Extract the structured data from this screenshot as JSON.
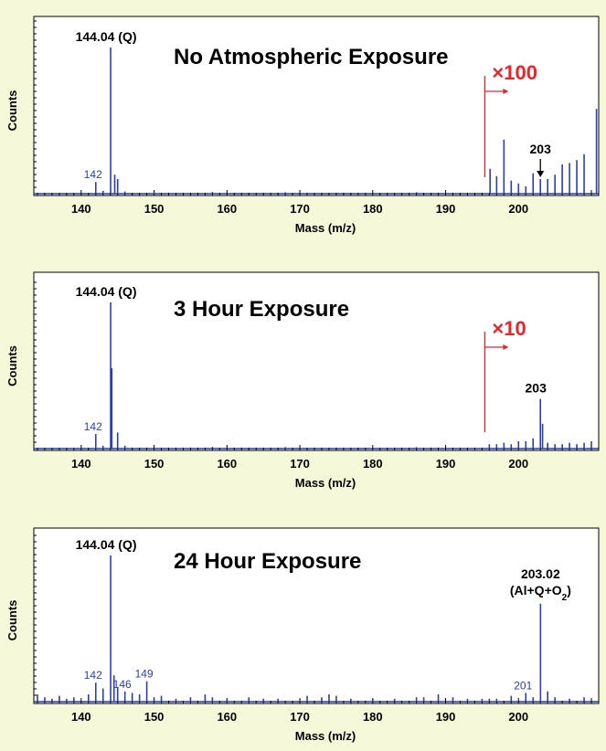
{
  "colors": {
    "background": "#f6f9d9",
    "plot_bg": "#ffffff",
    "series": "#2a3fb0",
    "scale_marker": "#e8252a",
    "axis": "#000000"
  },
  "chart_data": [
    {
      "type": "bar",
      "title": "No Atmospheric Exposure",
      "xlabel": "Mass (m/z)",
      "ylabel": "Counts",
      "xlim": [
        133.5,
        211
      ],
      "ylim": [
        0,
        1
      ],
      "xticks": [
        140,
        150,
        160,
        170,
        180,
        190,
        200
      ],
      "scale_factor_label": "×100",
      "scale_from": 196,
      "peaks": [
        {
          "x": 142,
          "y": 0.08
        },
        {
          "x": 143,
          "y": 0.02
        },
        {
          "x": 144.04,
          "y": 1.0
        },
        {
          "x": 144.6,
          "y": 0.13
        },
        {
          "x": 145,
          "y": 0.1
        },
        {
          "x": 146,
          "y": 0.015
        },
        {
          "x": 150,
          "y": 0.01
        },
        {
          "x": 158,
          "y": 0.012
        },
        {
          "x": 168,
          "y": 0.01
        },
        {
          "x": 186,
          "y": 0.01
        },
        {
          "x": 196.1,
          "y": 0.17
        },
        {
          "x": 197,
          "y": 0.12
        },
        {
          "x": 198,
          "y": 0.37
        },
        {
          "x": 199,
          "y": 0.09
        },
        {
          "x": 200,
          "y": 0.07
        },
        {
          "x": 201,
          "y": 0.05
        },
        {
          "x": 202,
          "y": 0.14
        },
        {
          "x": 203,
          "y": 0.1
        },
        {
          "x": 204,
          "y": 0.1
        },
        {
          "x": 205,
          "y": 0.13
        },
        {
          "x": 206,
          "y": 0.2
        },
        {
          "x": 207,
          "y": 0.21
        },
        {
          "x": 208,
          "y": 0.23
        },
        {
          "x": 209,
          "y": 0.27
        },
        {
          "x": 210.7,
          "y": 0.58
        }
      ],
      "annotations": [
        {
          "x": 144.04,
          "y": 1.0,
          "text": "144.04 (Q)",
          "style": "peak"
        },
        {
          "x": 142,
          "y": 0.08,
          "text": "142",
          "style": "small"
        },
        {
          "x": 203,
          "y": 0.1,
          "text": "203",
          "style": "peak",
          "arrow": true
        }
      ]
    },
    {
      "type": "bar",
      "title": "3 Hour Exposure",
      "xlabel": "Mass (m/z)",
      "ylabel": "Counts",
      "xlim": [
        133.5,
        211
      ],
      "ylim": [
        0,
        1
      ],
      "xticks": [
        140,
        150,
        160,
        170,
        180,
        190,
        200
      ],
      "scale_factor_label": "×10",
      "scale_from": 196,
      "peaks": [
        {
          "x": 142,
          "y": 0.1
        },
        {
          "x": 143,
          "y": 0.02
        },
        {
          "x": 144.04,
          "y": 1.0
        },
        {
          "x": 144.2,
          "y": 0.55
        },
        {
          "x": 145,
          "y": 0.11
        },
        {
          "x": 146,
          "y": 0.02
        },
        {
          "x": 158,
          "y": 0.012
        },
        {
          "x": 168,
          "y": 0.01
        },
        {
          "x": 186,
          "y": 0.01
        },
        {
          "x": 196,
          "y": 0.03
        },
        {
          "x": 197,
          "y": 0.03
        },
        {
          "x": 198,
          "y": 0.04
        },
        {
          "x": 199,
          "y": 0.03
        },
        {
          "x": 200,
          "y": 0.05
        },
        {
          "x": 201,
          "y": 0.05
        },
        {
          "x": 202,
          "y": 0.07
        },
        {
          "x": 203,
          "y": 0.34
        },
        {
          "x": 203.3,
          "y": 0.17
        },
        {
          "x": 204,
          "y": 0.04
        },
        {
          "x": 205,
          "y": 0.03
        },
        {
          "x": 206,
          "y": 0.03
        },
        {
          "x": 207,
          "y": 0.04
        },
        {
          "x": 208,
          "y": 0.03
        },
        {
          "x": 209,
          "y": 0.04
        },
        {
          "x": 210,
          "y": 0.05
        }
      ],
      "annotations": [
        {
          "x": 144.04,
          "y": 1.0,
          "text": "144.04 (Q)",
          "style": "peak"
        },
        {
          "x": 142,
          "y": 0.1,
          "text": "142",
          "style": "small"
        },
        {
          "x": 203,
          "y": 0.34,
          "text": "203",
          "style": "peak"
        }
      ]
    },
    {
      "type": "bar",
      "title": "24 Hour Exposure",
      "xlabel": "Mass (m/z)",
      "ylabel": "Counts",
      "xlim": [
        133.5,
        211
      ],
      "ylim": [
        0,
        1
      ],
      "xticks": [
        140,
        150,
        160,
        170,
        180,
        190,
        200
      ],
      "scale_factor_label": "",
      "peaks": [
        {
          "x": 134,
          "y": 0.05
        },
        {
          "x": 135,
          "y": 0.03
        },
        {
          "x": 136,
          "y": 0.02
        },
        {
          "x": 137,
          "y": 0.04
        },
        {
          "x": 138,
          "y": 0.02
        },
        {
          "x": 139,
          "y": 0.03
        },
        {
          "x": 141,
          "y": 0.05
        },
        {
          "x": 142,
          "y": 0.13
        },
        {
          "x": 143,
          "y": 0.09
        },
        {
          "x": 144.04,
          "y": 1.0
        },
        {
          "x": 144.5,
          "y": 0.18
        },
        {
          "x": 145,
          "y": 0.1
        },
        {
          "x": 146,
          "y": 0.07
        },
        {
          "x": 147,
          "y": 0.06
        },
        {
          "x": 148,
          "y": 0.05
        },
        {
          "x": 149,
          "y": 0.14
        },
        {
          "x": 150,
          "y": 0.03
        },
        {
          "x": 151,
          "y": 0.04
        },
        {
          "x": 153,
          "y": 0.02
        },
        {
          "x": 155,
          "y": 0.03
        },
        {
          "x": 157,
          "y": 0.05
        },
        {
          "x": 158,
          "y": 0.03
        },
        {
          "x": 160,
          "y": 0.02
        },
        {
          "x": 163,
          "y": 0.03
        },
        {
          "x": 165,
          "y": 0.02
        },
        {
          "x": 167,
          "y": 0.02
        },
        {
          "x": 171,
          "y": 0.04
        },
        {
          "x": 173,
          "y": 0.03
        },
        {
          "x": 174,
          "y": 0.05
        },
        {
          "x": 175,
          "y": 0.04
        },
        {
          "x": 177,
          "y": 0.02
        },
        {
          "x": 180,
          "y": 0.02
        },
        {
          "x": 183,
          "y": 0.02
        },
        {
          "x": 186,
          "y": 0.03
        },
        {
          "x": 187,
          "y": 0.03
        },
        {
          "x": 189,
          "y": 0.05
        },
        {
          "x": 191,
          "y": 0.03
        },
        {
          "x": 193,
          "y": 0.02
        },
        {
          "x": 195,
          "y": 0.02
        },
        {
          "x": 196,
          "y": 0.02
        },
        {
          "x": 197,
          "y": 0.02
        },
        {
          "x": 199,
          "y": 0.04
        },
        {
          "x": 201,
          "y": 0.06
        },
        {
          "x": 202,
          "y": 0.03
        },
        {
          "x": 203.02,
          "y": 0.67
        },
        {
          "x": 204,
          "y": 0.07
        },
        {
          "x": 205,
          "y": 0.03
        },
        {
          "x": 207,
          "y": 0.02
        },
        {
          "x": 209,
          "y": 0.03
        }
      ],
      "annotations": [
        {
          "x": 144.04,
          "y": 1.0,
          "text": "144.04 (Q)",
          "style": "peak"
        },
        {
          "x": 142,
          "y": 0.13,
          "text": "142",
          "style": "small"
        },
        {
          "x": 146,
          "y": 0.07,
          "text": "146",
          "style": "small"
        },
        {
          "x": 149,
          "y": 0.14,
          "text": "149",
          "style": "small"
        },
        {
          "x": 201,
          "y": 0.06,
          "text": "201",
          "style": "small"
        },
        {
          "x": 203.02,
          "y": 0.67,
          "text": "203.02",
          "style": "peak",
          "second_line": "(Al+Q+O",
          "second_line_sub": "2",
          "second_line_end": ")"
        }
      ]
    }
  ]
}
